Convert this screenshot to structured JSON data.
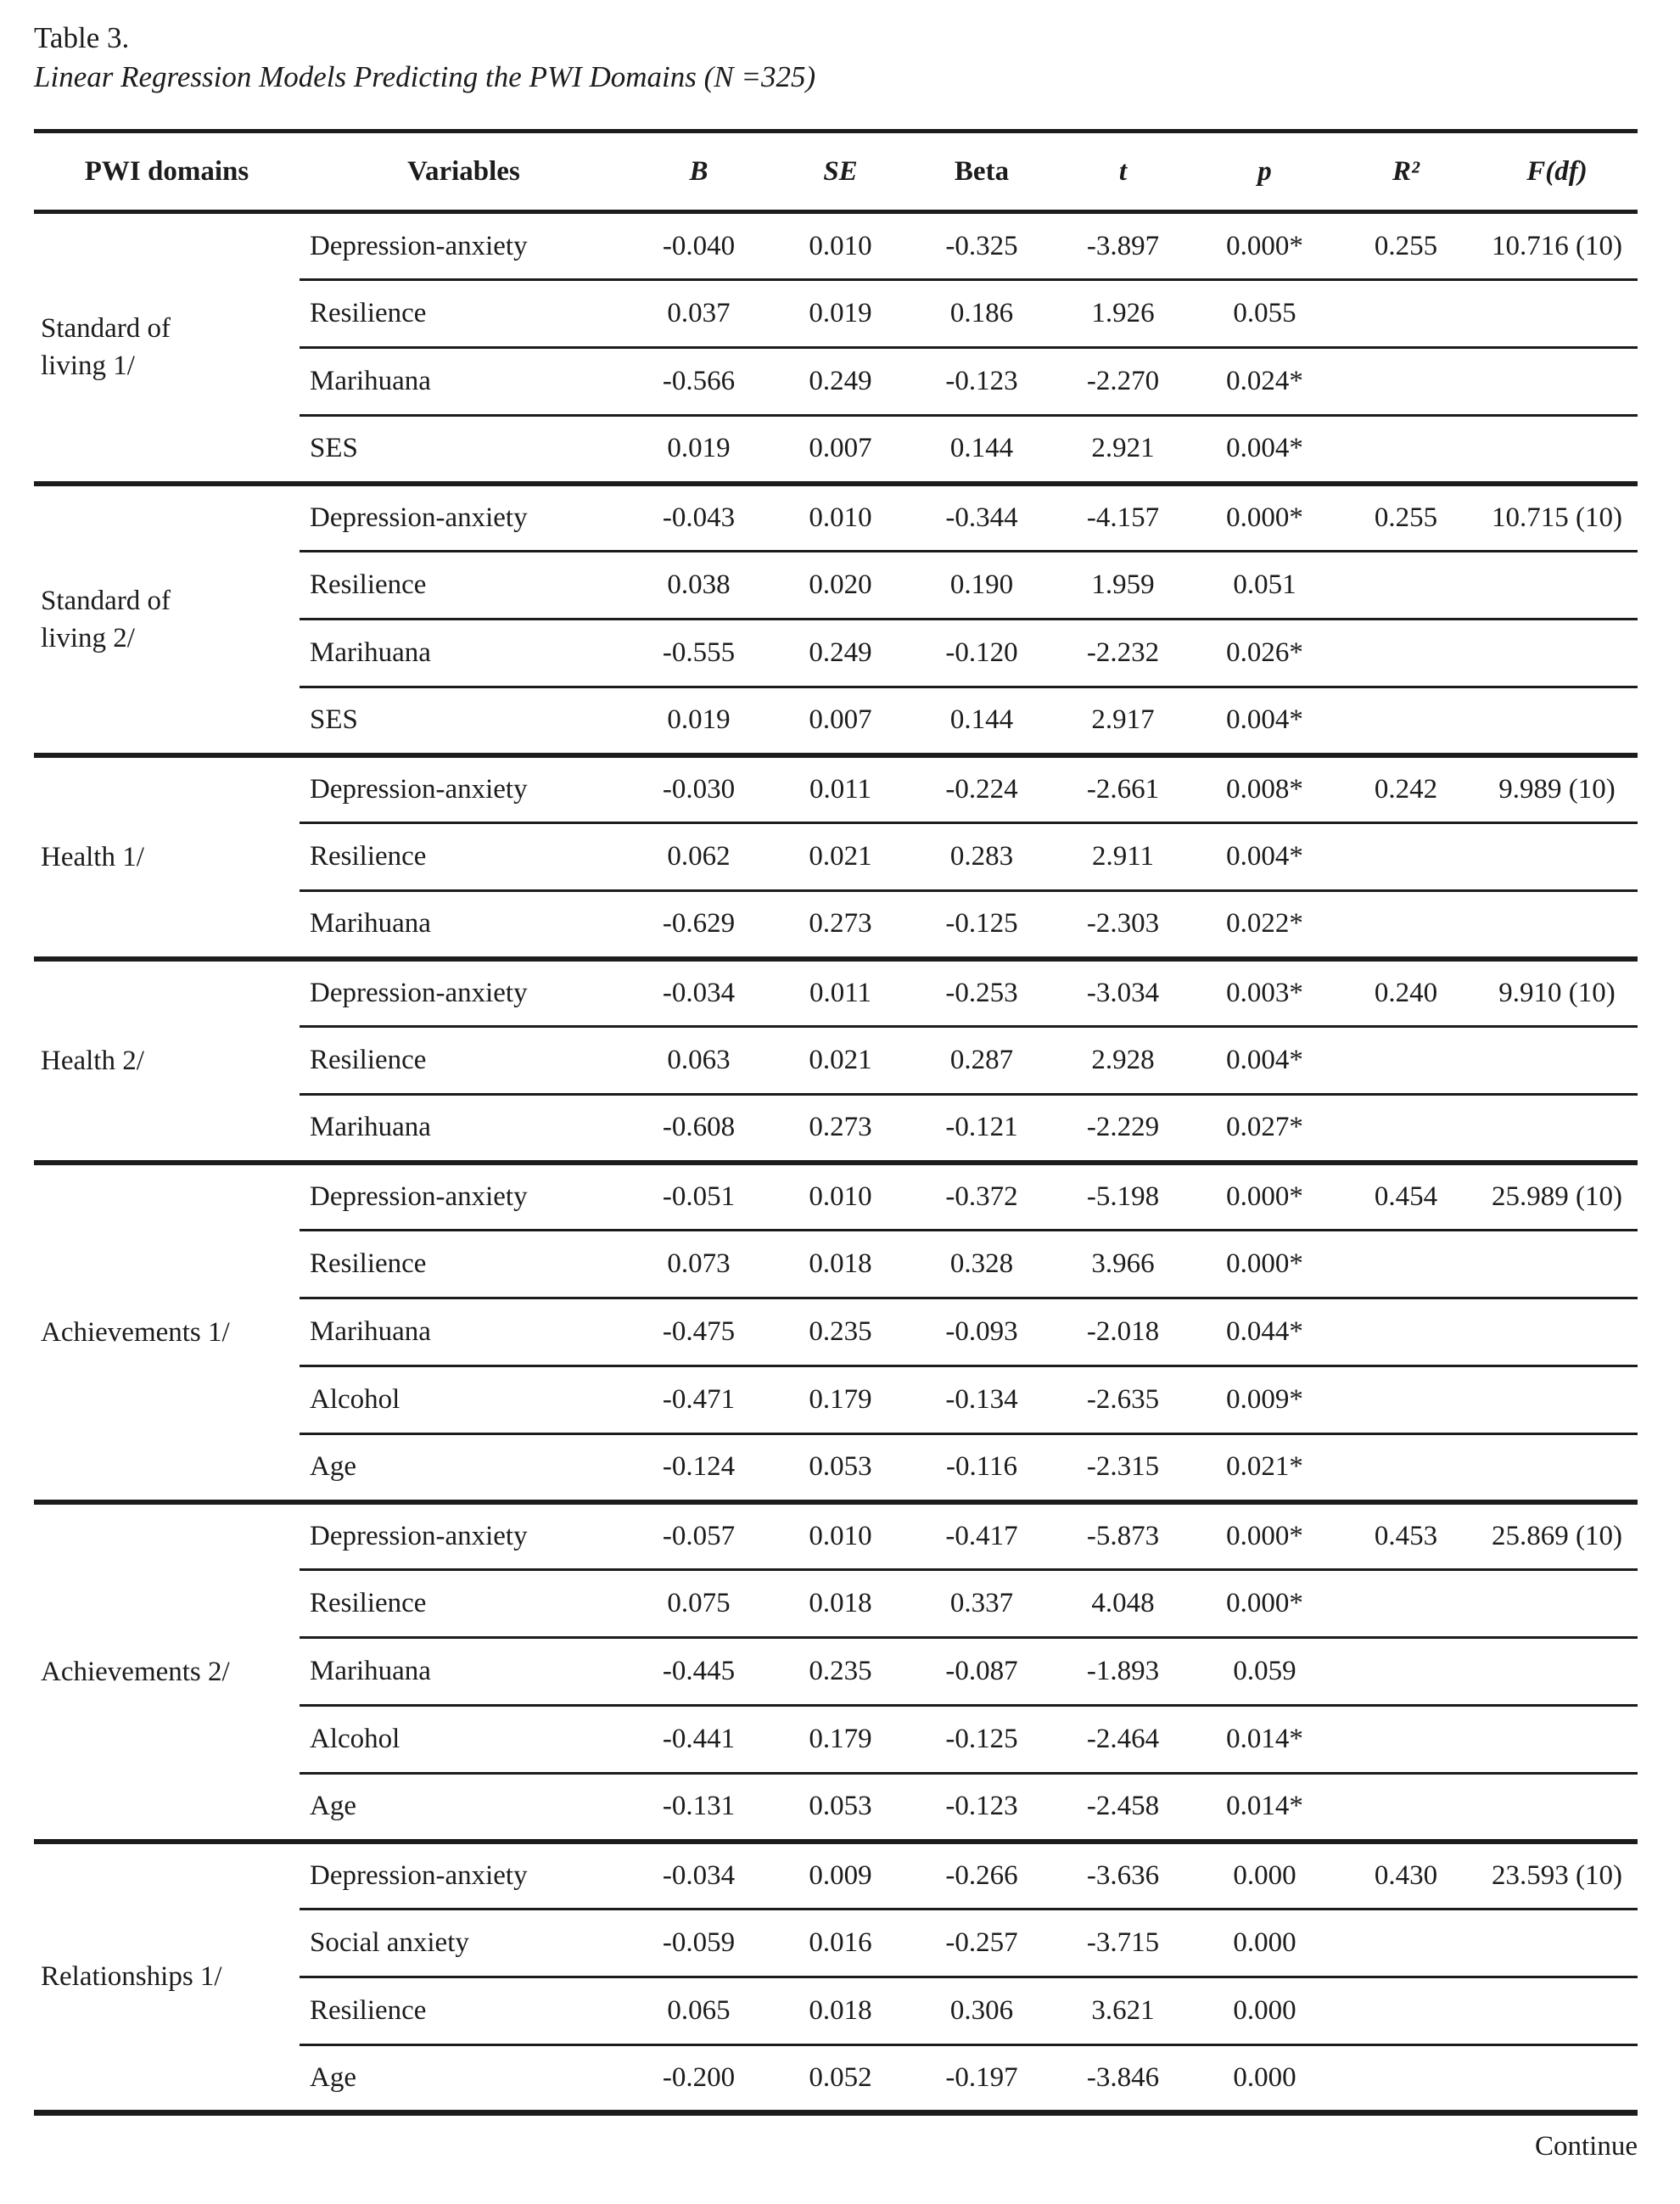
{
  "title": "Table 3.",
  "subtitle": "Linear Regression Models Predicting the PWI Domains (N =325)",
  "footer": {
    "continue_label": "Continue"
  },
  "table": {
    "columns": [
      "PWI domains",
      "Variables",
      "B",
      "SE",
      "Beta",
      "t",
      "p",
      "R²",
      "F(df)"
    ],
    "blocks": [
      {
        "domain": "Standard of\nliving 1/",
        "r2": "0.255",
        "f_df": "10.716 (10)",
        "rows": [
          {
            "variable": "Depression-anxiety",
            "b": "-0.040",
            "se": "0.010",
            "beta": "-0.325",
            "t": "-3.897",
            "p": "0.000*"
          },
          {
            "variable": "Resilience",
            "b": "0.037",
            "se": "0.019",
            "beta": "0.186",
            "t": "1.926",
            "p": "0.055"
          },
          {
            "variable": "Marihuana",
            "b": "-0.566",
            "se": "0.249",
            "beta": "-0.123",
            "t": "-2.270",
            "p": "0.024*"
          },
          {
            "variable": "SES",
            "b": "0.019",
            "se": "0.007",
            "beta": "0.144",
            "t": "2.921",
            "p": "0.004*"
          }
        ]
      },
      {
        "domain": "Standard of\nliving 2/",
        "r2": "0.255",
        "f_df": "10.715 (10)",
        "rows": [
          {
            "variable": "Depression-anxiety",
            "b": "-0.043",
            "se": "0.010",
            "beta": "-0.344",
            "t": "-4.157",
            "p": "0.000*"
          },
          {
            "variable": "Resilience",
            "b": "0.038",
            "se": "0.020",
            "beta": "0.190",
            "t": "1.959",
            "p": "0.051"
          },
          {
            "variable": "Marihuana",
            "b": "-0.555",
            "se": "0.249",
            "beta": "-0.120",
            "t": "-2.232",
            "p": "0.026*"
          },
          {
            "variable": "SES",
            "b": "0.019",
            "se": "0.007",
            "beta": "0.144",
            "t": "2.917",
            "p": "0.004*"
          }
        ]
      },
      {
        "domain": "Health 1/",
        "r2": "0.242",
        "f_df": "9.989 (10)",
        "rows": [
          {
            "variable": "Depression-anxiety",
            "b": "-0.030",
            "se": "0.011",
            "beta": "-0.224",
            "t": "-2.661",
            "p": "0.008*"
          },
          {
            "variable": "Resilience",
            "b": "0.062",
            "se": "0.021",
            "beta": "0.283",
            "t": "2.911",
            "p": "0.004*"
          },
          {
            "variable": "Marihuana",
            "b": "-0.629",
            "se": "0.273",
            "beta": "-0.125",
            "t": "-2.303",
            "p": "0.022*"
          }
        ]
      },
      {
        "domain": "Health 2/",
        "r2": "0.240",
        "f_df": "9.910 (10)",
        "rows": [
          {
            "variable": "Depression-anxiety",
            "b": "-0.034",
            "se": "0.011",
            "beta": "-0.253",
            "t": "-3.034",
            "p": "0.003*"
          },
          {
            "variable": "Resilience",
            "b": "0.063",
            "se": "0.021",
            "beta": "0.287",
            "t": "2.928",
            "p": "0.004*"
          },
          {
            "variable": "Marihuana",
            "b": "-0.608",
            "se": "0.273",
            "beta": "-0.121",
            "t": "-2.229",
            "p": "0.027*"
          }
        ]
      },
      {
        "domain": "Achievements 1/",
        "r2": "0.454",
        "f_df": "25.989 (10)",
        "rows": [
          {
            "variable": "Depression-anxiety",
            "b": "-0.051",
            "se": "0.010",
            "beta": "-0.372",
            "t": "-5.198",
            "p": "0.000*"
          },
          {
            "variable": "Resilience",
            "b": "0.073",
            "se": "0.018",
            "beta": "0.328",
            "t": "3.966",
            "p": "0.000*"
          },
          {
            "variable": "Marihuana",
            "b": "-0.475",
            "se": "0.235",
            "beta": "-0.093",
            "t": "-2.018",
            "p": "0.044*"
          },
          {
            "variable": "Alcohol",
            "b": "-0.471",
            "se": "0.179",
            "beta": "-0.134",
            "t": "-2.635",
            "p": "0.009*"
          },
          {
            "variable": "Age",
            "b": "-0.124",
            "se": "0.053",
            "beta": "-0.116",
            "t": "-2.315",
            "p": "0.021*"
          }
        ]
      },
      {
        "domain": "Achievements 2/",
        "r2": "0.453",
        "f_df": "25.869 (10)",
        "rows": [
          {
            "variable": "Depression-anxiety",
            "b": "-0.057",
            "se": "0.010",
            "beta": "-0.417",
            "t": "-5.873",
            "p": "0.000*"
          },
          {
            "variable": "Resilience",
            "b": "0.075",
            "se": "0.018",
            "beta": "0.337",
            "t": "4.048",
            "p": "0.000*"
          },
          {
            "variable": "Marihuana",
            "b": "-0.445",
            "se": "0.235",
            "beta": "-0.087",
            "t": "-1.893",
            "p": "0.059"
          },
          {
            "variable": "Alcohol",
            "b": "-0.441",
            "se": "0.179",
            "beta": "-0.125",
            "t": "-2.464",
            "p": "0.014*"
          },
          {
            "variable": "Age",
            "b": "-0.131",
            "se": "0.053",
            "beta": "-0.123",
            "t": "-2.458",
            "p": "0.014*"
          }
        ]
      },
      {
        "domain": "Relationships 1/",
        "r2": "0.430",
        "f_df": "23.593 (10)",
        "rows": [
          {
            "variable": "Depression-anxiety",
            "b": "-0.034",
            "se": "0.009",
            "beta": "-0.266",
            "t": "-3.636",
            "p": "0.000"
          },
          {
            "variable": "Social anxiety",
            "b": "-0.059",
            "se": "0.016",
            "beta": "-0.257",
            "t": "-3.715",
            "p": "0.000"
          },
          {
            "variable": "Resilience",
            "b": "0.065",
            "se": "0.018",
            "beta": "0.306",
            "t": "3.621",
            "p": "0.000"
          },
          {
            "variable": "Age",
            "b": "-0.200",
            "se": "0.052",
            "beta": "-0.197",
            "t": "-3.846",
            "p": "0.000"
          }
        ]
      }
    ]
  }
}
